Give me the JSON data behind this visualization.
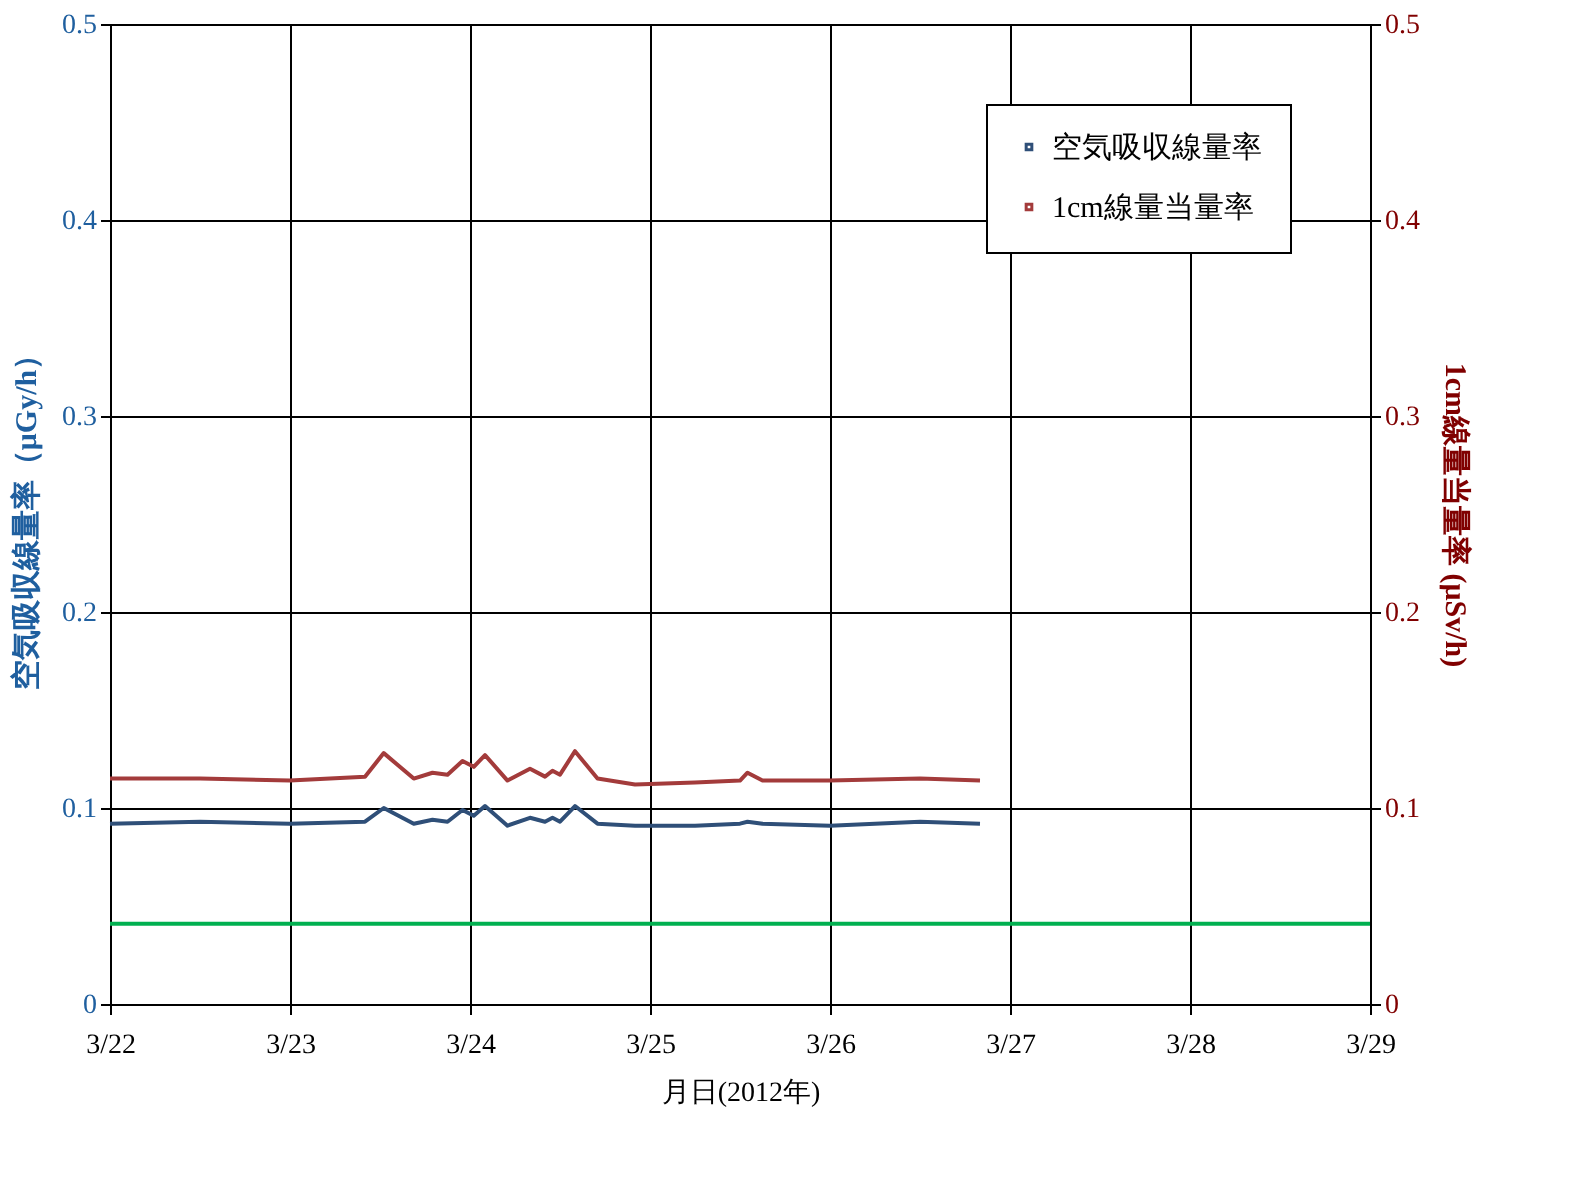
{
  "chart_data": {
    "type": "line",
    "xlabel": "月日(2012年)",
    "ylabel": "空気吸収線量率（μGy/h）",
    "y2label": "1cm線量当量率 (μSv/h)",
    "x": [
      "2012-03-22T00:00",
      "2012-03-22T12:00",
      "2012-03-23T00:00",
      "2012-03-23T10:00",
      "2012-03-23T12:30",
      "2012-03-23T16:30",
      "2012-03-23T19:00",
      "2012-03-23T21:00",
      "2012-03-23T23:00",
      "2012-03-24T00:30",
      "2012-03-24T02:00",
      "2012-03-24T05:00",
      "2012-03-24T08:00",
      "2012-03-24T10:00",
      "2012-03-24T11:00",
      "2012-03-24T12:00",
      "2012-03-24T14:00",
      "2012-03-24T17:00",
      "2012-03-24T22:00",
      "2012-03-25T06:00",
      "2012-03-25T12:00",
      "2012-03-25T13:00",
      "2012-03-25T15:00",
      "2012-03-26T00:00",
      "2012-03-26T12:00",
      "2012-03-26T20:00"
    ],
    "series": [
      {
        "name": "空気吸収線量率",
        "color": "#2f4f78",
        "values": [
          0.092,
          0.093,
          0.092,
          0.093,
          0.1,
          0.092,
          0.094,
          0.093,
          0.099,
          0.096,
          0.101,
          0.091,
          0.095,
          0.093,
          0.095,
          0.093,
          0.101,
          0.092,
          0.091,
          0.091,
          0.092,
          0.093,
          0.092,
          0.091,
          0.093,
          0.092
        ]
      },
      {
        "name": "1cm線量当量率",
        "color": "#a33b3b",
        "axis": "y2",
        "values": [
          0.115,
          0.115,
          0.114,
          0.116,
          0.128,
          0.115,
          0.118,
          0.117,
          0.124,
          0.121,
          0.127,
          0.114,
          0.12,
          0.116,
          0.119,
          0.117,
          0.129,
          0.115,
          0.112,
          0.113,
          0.114,
          0.118,
          0.114,
          0.114,
          0.115,
          0.114
        ]
      }
    ],
    "xlim": [
      "2012-03-22",
      "2012-03-29"
    ],
    "xticks": [
      {
        "value": "2012-03-22",
        "label": "3/22"
      },
      {
        "value": "2012-03-23",
        "label": "3/23"
      },
      {
        "value": "2012-03-24",
        "label": "3/24"
      },
      {
        "value": "2012-03-25",
        "label": "3/25"
      },
      {
        "value": "2012-03-26",
        "label": "3/26"
      },
      {
        "value": "2012-03-27",
        "label": "3/27"
      },
      {
        "value": "2012-03-28",
        "label": "3/28"
      },
      {
        "value": "2012-03-29",
        "label": "3/29"
      }
    ],
    "ylim": [
      0,
      0.5
    ],
    "yticks": [
      0,
      0.1,
      0.2,
      0.3,
      0.4,
      0.5
    ],
    "y2lim": [
      0,
      0.5
    ],
    "y2ticks": [
      0,
      0.1,
      0.2,
      0.3,
      0.4,
      0.5
    ],
    "ref_lines": [
      {
        "axis": "y",
        "value": 0.041,
        "color": "#00b050"
      }
    ],
    "grid": true,
    "legend": "top right",
    "line_style": "solid"
  }
}
